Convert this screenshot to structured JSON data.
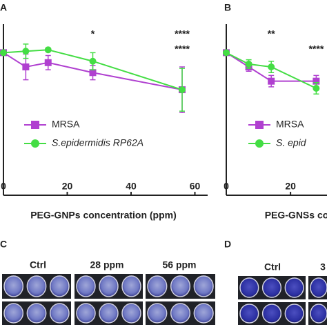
{
  "chart_data": [
    {
      "type": "line",
      "panel": "A",
      "xlabel": "PEG-GNPs concentration (ppm)",
      "x": [
        0,
        7,
        14,
        28,
        56
      ],
      "xlim": [
        0,
        64
      ],
      "xticks": [
        0,
        20,
        40,
        60
      ],
      "ylim": [
        0,
        120
      ],
      "series": [
        {
          "name": "MRSA",
          "color": "#b040d0",
          "marker": "square",
          "values": [
            100,
            90,
            93,
            86,
            74
          ],
          "errors": [
            0,
            9,
            5,
            5,
            16
          ]
        },
        {
          "name": "S.epidermidis RP62A",
          "color": "#44dd44",
          "marker": "circle",
          "values": [
            100,
            101,
            102,
            94,
            74
          ],
          "errors": [
            0,
            5,
            0,
            6,
            15
          ]
        }
      ],
      "annotations": [
        {
          "text": "*",
          "x": 28,
          "color": "#b040d0"
        },
        {
          "text": "****",
          "x": 56,
          "color": "#b040d0"
        },
        {
          "text": "****",
          "x": 56,
          "color": "#44dd44"
        }
      ]
    },
    {
      "type": "line",
      "panel": "B",
      "xlabel": "PEG-GNSs co",
      "x": [
        0,
        7,
        14,
        28
      ],
      "xlim": [
        0,
        64
      ],
      "xticks": [
        0,
        20
      ],
      "ylim": [
        0,
        120
      ],
      "series": [
        {
          "name": "MRSA",
          "color": "#b040d0",
          "marker": "square",
          "values": [
            100,
            90,
            80,
            80
          ],
          "errors": [
            0,
            3,
            4,
            4
          ]
        },
        {
          "name": "S. epid",
          "color": "#44dd44",
          "marker": "circle",
          "values": [
            100,
            92,
            90,
            75
          ],
          "errors": [
            0,
            3,
            4,
            4
          ]
        }
      ],
      "annotations": [
        {
          "text": "**",
          "x": 14,
          "color": "#b040d0"
        },
        {
          "text": "****",
          "x": 28,
          "color": "#44dd44"
        }
      ]
    }
  ],
  "photo_panels": [
    {
      "label": "C",
      "columns": [
        "Ctrl",
        "28 ppm",
        "56 ppm"
      ]
    },
    {
      "label": "D",
      "columns": [
        "Ctrl",
        "3"
      ]
    }
  ]
}
